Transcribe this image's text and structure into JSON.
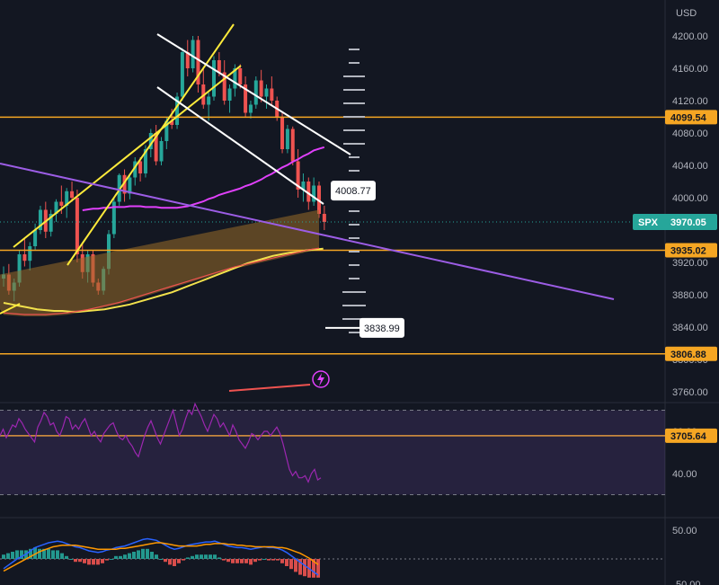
{
  "currency_label": "USD",
  "price_scale": {
    "ticks": [
      "4200.00",
      "4160.00",
      "4120.00",
      "4080.00",
      "4040.00",
      "4000.00",
      "3920.00",
      "3880.00",
      "3840.00",
      "3800.00",
      "3760.00"
    ],
    "tick_values": [
      4200,
      4160,
      4120,
      4080,
      4040,
      4000,
      3920,
      3880,
      3840,
      3800,
      3760
    ]
  },
  "horizontal_levels": [
    {
      "value": 4099.54,
      "label": "4099.54",
      "color": "#f5a623"
    },
    {
      "value": 3935.02,
      "label": "3935.02",
      "color": "#f5a623"
    },
    {
      "value": 3806.88,
      "label": "3806.88",
      "color": "#f5a623"
    },
    {
      "value": 3705.64,
      "label": "3705.64",
      "color": "#f5a623"
    }
  ],
  "symbol_tag": {
    "symbol": "SPX",
    "price": "3970.05",
    "color": "#26a69a"
  },
  "callouts": [
    {
      "label": "4008.77",
      "value": 4008.77
    },
    {
      "label": "3838.99",
      "value": 3838.99
    }
  ],
  "rsi_panel": {
    "ticks": [
      "60.00",
      "40.00"
    ],
    "tick_values": [
      60,
      40
    ],
    "upper_band": 70,
    "lower_band": 30,
    "line_color": "#9c27b0",
    "values": [
      58,
      61,
      57,
      60,
      63,
      62,
      66,
      64,
      61,
      59,
      57,
      55,
      62,
      65,
      69,
      67,
      63,
      64,
      60,
      58,
      62,
      67,
      66,
      61,
      63,
      61,
      64,
      66,
      62,
      58,
      60,
      57,
      55,
      59,
      61,
      63,
      64,
      60,
      57,
      56,
      58,
      55,
      53,
      50,
      48,
      53,
      58,
      62,
      65,
      61,
      57,
      54,
      58,
      62,
      66,
      70,
      64,
      58,
      61,
      66,
      70,
      68,
      73,
      70,
      67,
      63,
      60,
      64,
      68,
      66,
      62,
      64,
      61,
      58,
      63,
      60,
      56,
      54,
      52,
      55,
      59,
      58,
      56,
      58,
      60,
      60,
      58,
      60,
      62,
      59,
      54,
      48,
      42,
      39,
      41,
      38,
      38,
      39,
      36,
      40,
      42,
      37,
      38
    ]
  },
  "macd_panel": {
    "ticks": [
      "50.00",
      "50.00"
    ],
    "macd_color": "#2962ff",
    "signal_color": "#ff9800",
    "macd": [
      -12,
      -8,
      -4,
      0,
      3,
      6,
      10,
      14,
      16,
      18,
      20,
      21,
      22,
      21,
      19,
      17,
      15,
      14,
      12,
      10,
      9,
      8,
      9,
      11,
      12,
      14,
      15,
      16,
      18,
      20,
      22,
      24,
      25,
      24,
      23,
      20,
      17,
      14,
      12,
      13,
      15,
      17,
      18,
      19,
      20,
      21,
      21,
      22,
      20,
      18,
      16,
      15,
      14,
      14,
      13,
      12,
      13,
      14,
      15,
      14,
      14,
      13,
      11,
      8,
      4,
      0,
      -4,
      -8,
      -12,
      -16,
      -20
    ],
    "signal": [
      -15,
      -12,
      -9,
      -6,
      -3,
      0,
      3,
      6,
      9,
      11,
      13,
      15,
      16,
      17,
      17,
      17,
      17,
      16,
      15,
      14,
      13,
      12,
      12,
      12,
      12,
      12,
      13,
      13,
      14,
      15,
      16,
      17,
      18,
      19,
      20,
      20,
      19,
      18,
      17,
      16,
      16,
      16,
      16,
      16,
      17,
      18,
      18,
      19,
      19,
      19,
      18,
      18,
      17,
      17,
      16,
      16,
      15,
      15,
      15,
      15,
      15,
      14,
      14,
      13,
      11,
      9,
      7,
      4,
      1,
      -3,
      -7
    ]
  },
  "chart_data": {
    "type": "candlestick",
    "symbol": "SPX",
    "currency": "USD",
    "ylim": [
      3700,
      4210
    ],
    "candles": [
      [
        3900,
        3915,
        3890,
        3905
      ],
      [
        3905,
        3918,
        3880,
        3885
      ],
      [
        3885,
        3900,
        3872,
        3895
      ],
      [
        3895,
        3935,
        3890,
        3930
      ],
      [
        3930,
        3950,
        3915,
        3922
      ],
      [
        3922,
        3945,
        3910,
        3940
      ],
      [
        3940,
        3968,
        3935,
        3960
      ],
      [
        3960,
        3990,
        3955,
        3985
      ],
      [
        3985,
        3995,
        3950,
        3958
      ],
      [
        3958,
        3985,
        3952,
        3980
      ],
      [
        3980,
        3998,
        3970,
        3995
      ],
      [
        3995,
        4015,
        3980,
        3990
      ],
      [
        3990,
        4012,
        3975,
        4008
      ],
      [
        4008,
        4020,
        3995,
        4000
      ],
      [
        4000,
        4010,
        3920,
        3930
      ],
      [
        3930,
        3945,
        3900,
        3908
      ],
      [
        3908,
        3935,
        3895,
        3930
      ],
      [
        3930,
        3935,
        3890,
        3895
      ],
      [
        3895,
        3900,
        3880,
        3885
      ],
      [
        3885,
        3915,
        3880,
        3912
      ],
      [
        3912,
        3960,
        3905,
        3955
      ],
      [
        3955,
        4000,
        3950,
        3995
      ],
      [
        3995,
        4030,
        3990,
        4028
      ],
      [
        4028,
        4035,
        3995,
        4005
      ],
      [
        4005,
        4030,
        3998,
        4025
      ],
      [
        4025,
        4050,
        4015,
        4045
      ],
      [
        4045,
        4050,
        4020,
        4030
      ],
      [
        4030,
        4065,
        4025,
        4060
      ],
      [
        4060,
        4085,
        4050,
        4080
      ],
      [
        4080,
        4090,
        4040,
        4045
      ],
      [
        4045,
        4075,
        4040,
        4070
      ],
      [
        4070,
        4100,
        4060,
        4095
      ],
      [
        4095,
        4110,
        4085,
        4090
      ],
      [
        4090,
        4130,
        4085,
        4125
      ],
      [
        4125,
        4185,
        4120,
        4180
      ],
      [
        4180,
        4195,
        4150,
        4160
      ],
      [
        4160,
        4200,
        4155,
        4195
      ],
      [
        4195,
        4200,
        4130,
        4140
      ],
      [
        4140,
        4160,
        4110,
        4115
      ],
      [
        4115,
        4130,
        4095,
        4125
      ],
      [
        4125,
        4175,
        4120,
        4170
      ],
      [
        4170,
        4180,
        4150,
        4155
      ],
      [
        4155,
        4170,
        4115,
        4120
      ],
      [
        4120,
        4140,
        4105,
        4135
      ],
      [
        4135,
        4165,
        4125,
        4160
      ],
      [
        4160,
        4165,
        4135,
        4140
      ],
      [
        4140,
        4150,
        4100,
        4105
      ],
      [
        4105,
        4120,
        4098,
        4115
      ],
      [
        4115,
        4150,
        4110,
        4145
      ],
      [
        4145,
        4158,
        4118,
        4125
      ],
      [
        4125,
        4140,
        4110,
        4135
      ],
      [
        4135,
        4150,
        4115,
        4120
      ],
      [
        4120,
        4125,
        4095,
        4100
      ],
      [
        4100,
        4105,
        4055,
        4060
      ],
      [
        4060,
        4090,
        4055,
        4085
      ],
      [
        4085,
        4088,
        4040,
        4045
      ],
      [
        4045,
        4060,
        4000,
        4010
      ],
      [
        4010,
        4030,
        3995,
        4020
      ],
      [
        4020,
        4025,
        3985,
        3995
      ],
      [
        3995,
        4025,
        3990,
        4015
      ],
      [
        4015,
        4020,
        3975,
        3980
      ],
      [
        3980,
        3990,
        3960,
        3970
      ]
    ],
    "overlays": [
      {
        "type": "moving_average",
        "color": "#e040fb",
        "values": [
          3940,
          3941,
          3942,
          3942,
          3943,
          3943,
          3944,
          3944,
          3944,
          3945,
          3945,
          3945,
          3944,
          3944,
          3944,
          3943,
          3943,
          3943,
          3943,
          3944,
          3945,
          3947,
          3949,
          3951,
          3954,
          3956,
          3959,
          3961,
          3963,
          3965,
          3967,
          3970,
          3972,
          3975,
          3978,
          3982,
          3985,
          3989,
          3993,
          3996,
          4000,
          4003,
          4007,
          4010,
          4014,
          4016,
          4018
        ]
      },
      {
        "type": "moving_average",
        "color": "#f2e14c",
        "values": [
          3870,
          3868,
          3866,
          3864,
          3862,
          3861,
          3860,
          3860,
          3859,
          3859,
          3860,
          3861,
          3862,
          3864,
          3866,
          3868,
          3871,
          3874,
          3877,
          3880,
          3883,
          3887,
          3891,
          3895,
          3899,
          3903,
          3907,
          3911,
          3915,
          3919,
          3922,
          3925,
          3928,
          3930,
          3932,
          3933,
          3935,
          3936,
          3937
        ]
      },
      {
        "type": "moving_average",
        "color": "#ef5350",
        "values": [
          3862,
          3861,
          3860,
          3860,
          3860,
          3861,
          3862,
          3864,
          3866,
          3869,
          3872,
          3875,
          3879,
          3883,
          3887,
          3891,
          3895,
          3899,
          3903,
          3907,
          3911,
          3915,
          3919,
          3922,
          3925,
          3928,
          3931,
          3934,
          3937,
          3940,
          3942
        ]
      }
    ],
    "trendlines": [
      {
        "name": "",
        "color": "#ffeb3b"
      },
      {
        "name": "",
        "color": "#ffeb3b"
      },
      {
        "name": "",
        "color": "#ffffff"
      },
      {
        "name": "",
        "color": "#ffffff"
      },
      {
        "name": "",
        "color": "#9c5de5"
      }
    ],
    "grid": false
  }
}
